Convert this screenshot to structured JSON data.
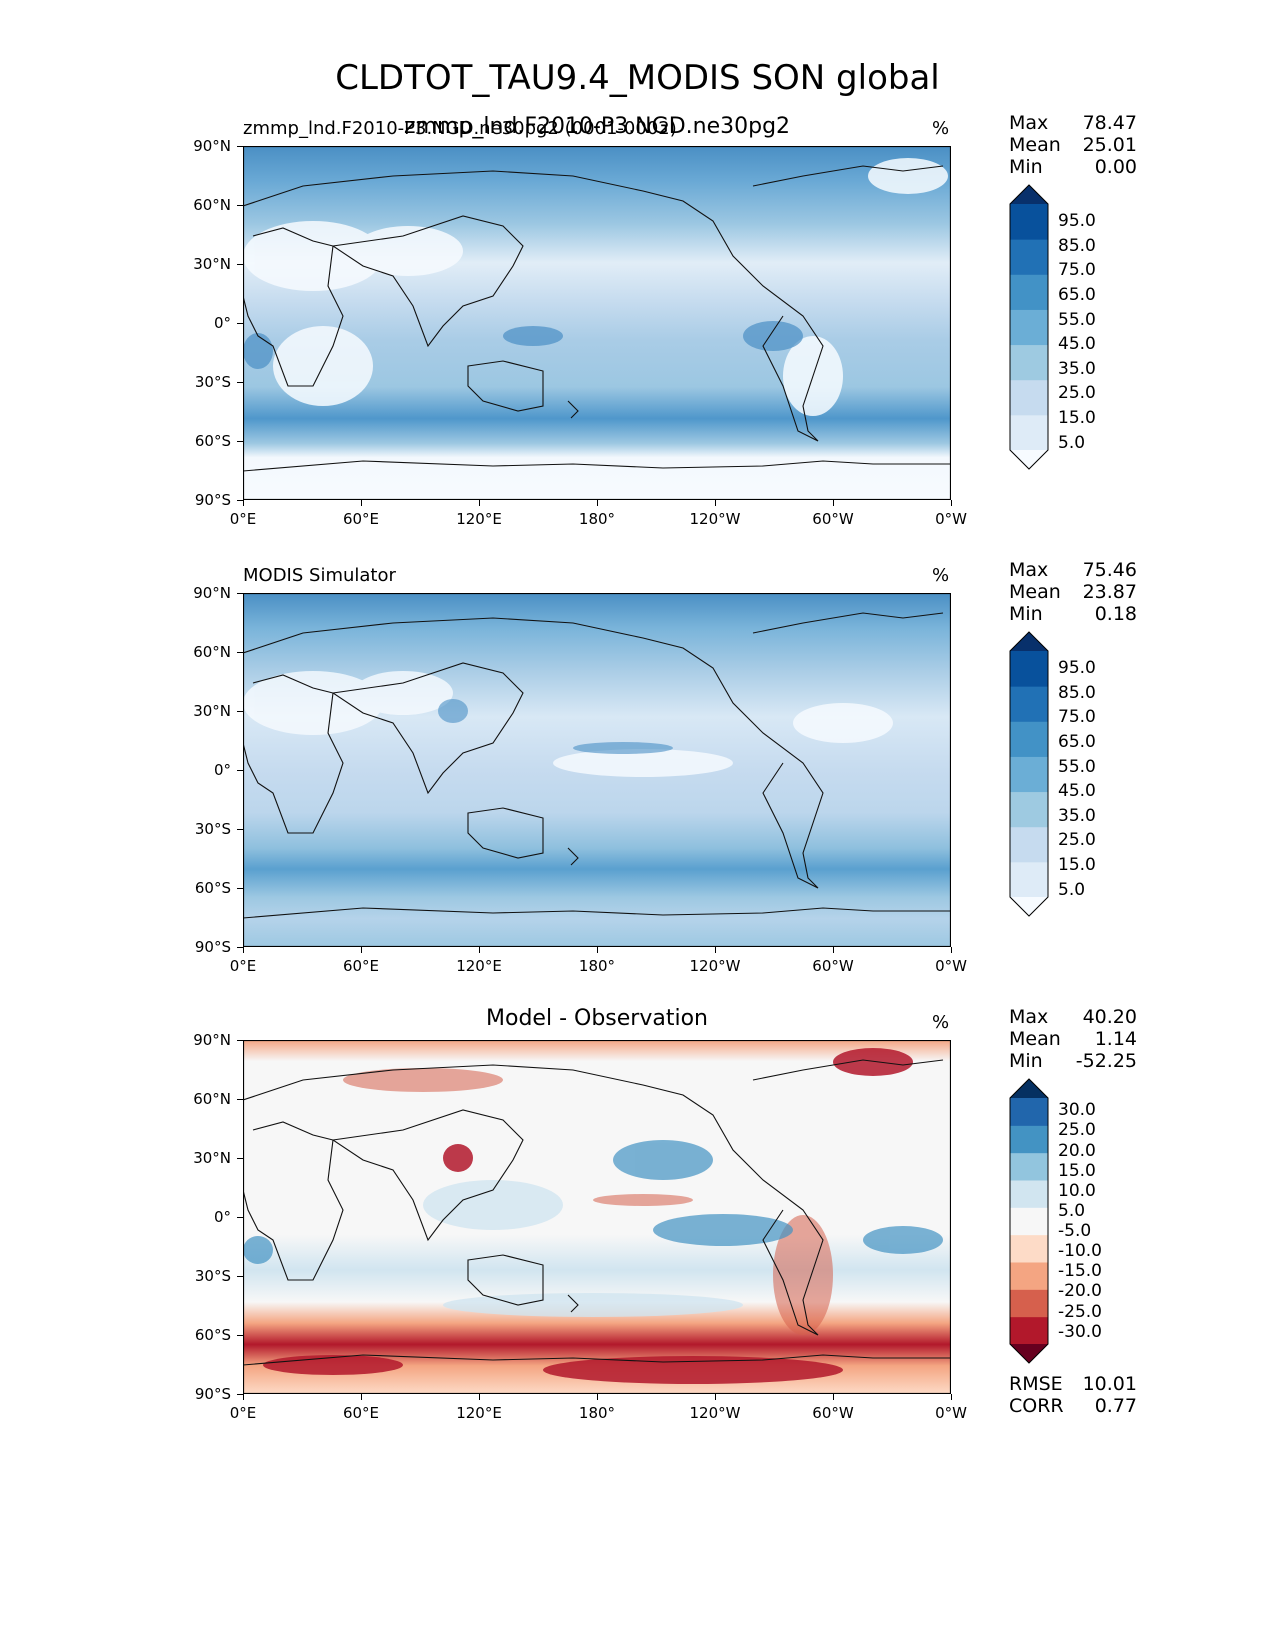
{
  "title": "CLDTOT_TAU9.4_MODIS SON global",
  "panels": [
    {
      "subtitle_left": "zmmp_lnd.F2010-P3.NGD.ne30pg2 (0001-0002)",
      "subtitle_center": "zmmp_lnd.F2010-P3.NGD.ne30pg2",
      "units": "%",
      "stats": {
        "max_label": "Max",
        "max": "78.47",
        "mean_label": "Mean",
        "mean": "25.01",
        "min_label": "Min",
        "min": "0.00"
      },
      "colorbar": [
        "5.0",
        "15.0",
        "25.0",
        "35.0",
        "45.0",
        "55.0",
        "65.0",
        "75.0",
        "85.0",
        "95.0"
      ]
    },
    {
      "subtitle_left": "MODIS Simulator",
      "subtitle_center": "",
      "units": "%",
      "stats": {
        "max_label": "Max",
        "max": "75.46",
        "mean_label": "Mean",
        "mean": "23.87",
        "min_label": "Min",
        "min": "0.18"
      },
      "colorbar": [
        "5.0",
        "15.0",
        "25.0",
        "35.0",
        "45.0",
        "55.0",
        "65.0",
        "75.0",
        "85.0",
        "95.0"
      ]
    },
    {
      "subtitle_left": "",
      "subtitle_center": "Model - Observation",
      "units": "%",
      "stats": {
        "max_label": "Max",
        "max": "40.20",
        "mean_label": "Mean",
        "mean": "1.14",
        "min_label": "Min",
        "min": "-52.25"
      },
      "colorbar": [
        "-30.0",
        "-25.0",
        "-20.0",
        "-15.0",
        "-10.0",
        "-5.0",
        "5.0",
        "10.0",
        "15.0",
        "20.0",
        "25.0",
        "30.0"
      ],
      "metrics": {
        "rmse_label": "RMSE",
        "rmse": "10.01",
        "corr_label": "CORR",
        "corr": "0.77"
      }
    }
  ],
  "axes": {
    "lat_ticks": [
      "90°N",
      "60°N",
      "30°N",
      "0°",
      "30°S",
      "60°S",
      "90°S"
    ],
    "lon_ticks": [
      "0°E",
      "60°E",
      "120°E",
      "180°",
      "120°W",
      "60°W",
      "0°W"
    ]
  },
  "colors": {
    "blues": [
      "#f7fbff",
      "#deebf7",
      "#c6dbef",
      "#9ecae1",
      "#6baed6",
      "#4292c6",
      "#2171b5",
      "#08519c",
      "#08306b"
    ],
    "diverging": [
      "#67001f",
      "#b2182b",
      "#d6604d",
      "#f4a582",
      "#fddbc7",
      "#f7f7f7",
      "#d1e5f0",
      "#92c5de",
      "#4393c3",
      "#2166ac",
      "#053061"
    ]
  }
}
